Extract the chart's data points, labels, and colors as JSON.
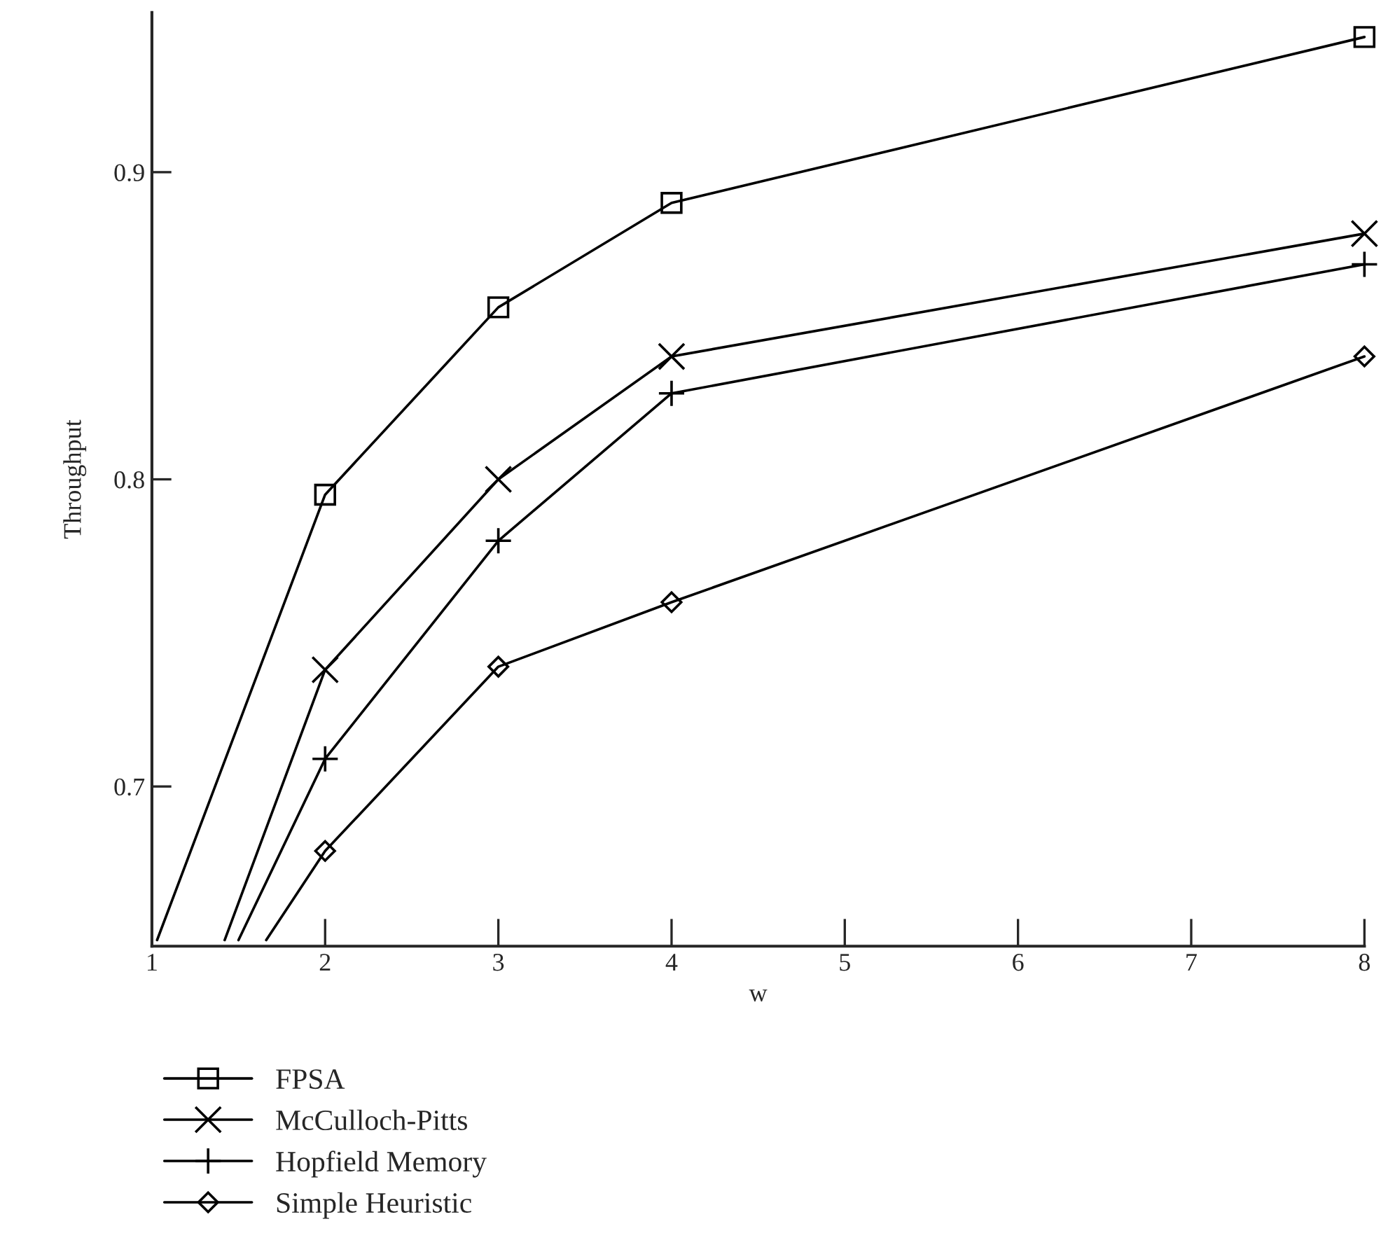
{
  "chart_data": {
    "type": "line",
    "xlabel": "w",
    "ylabel": "Throughput",
    "xlim": [
      1,
      8
    ],
    "xticks": [
      1,
      2,
      3,
      4,
      5,
      6,
      7,
      8
    ],
    "ylim": [
      0.648,
      0.952
    ],
    "yticks": [
      0.7,
      0.8,
      0.9
    ],
    "grid": false,
    "legend": "bottom left",
    "line_style": "solid",
    "series": [
      {
        "name": "FPSA",
        "color": "#000000",
        "marker": "square",
        "x": [
          1.03,
          2,
          3,
          4,
          8
        ],
        "values": [
          0.65,
          0.795,
          0.856,
          0.89,
          0.944
        ]
      },
      {
        "name": "McCulloch-Pitts",
        "color": "#000000",
        "marker": "cross",
        "x": [
          1.42,
          2,
          3,
          4,
          8
        ],
        "values": [
          0.65,
          0.738,
          0.8,
          0.84,
          0.88
        ]
      },
      {
        "name": "Hopfield Memory",
        "color": "#000000",
        "marker": "plus",
        "x": [
          1.5,
          2,
          3,
          4,
          8
        ],
        "values": [
          0.65,
          0.709,
          0.78,
          0.828,
          0.87
        ]
      },
      {
        "name": "Simple Heuristic",
        "color": "#000000",
        "marker": "diamond",
        "x": [
          1.66,
          2,
          3,
          4,
          8
        ],
        "values": [
          0.65,
          0.679,
          0.739,
          0.76,
          0.84
        ]
      }
    ]
  }
}
